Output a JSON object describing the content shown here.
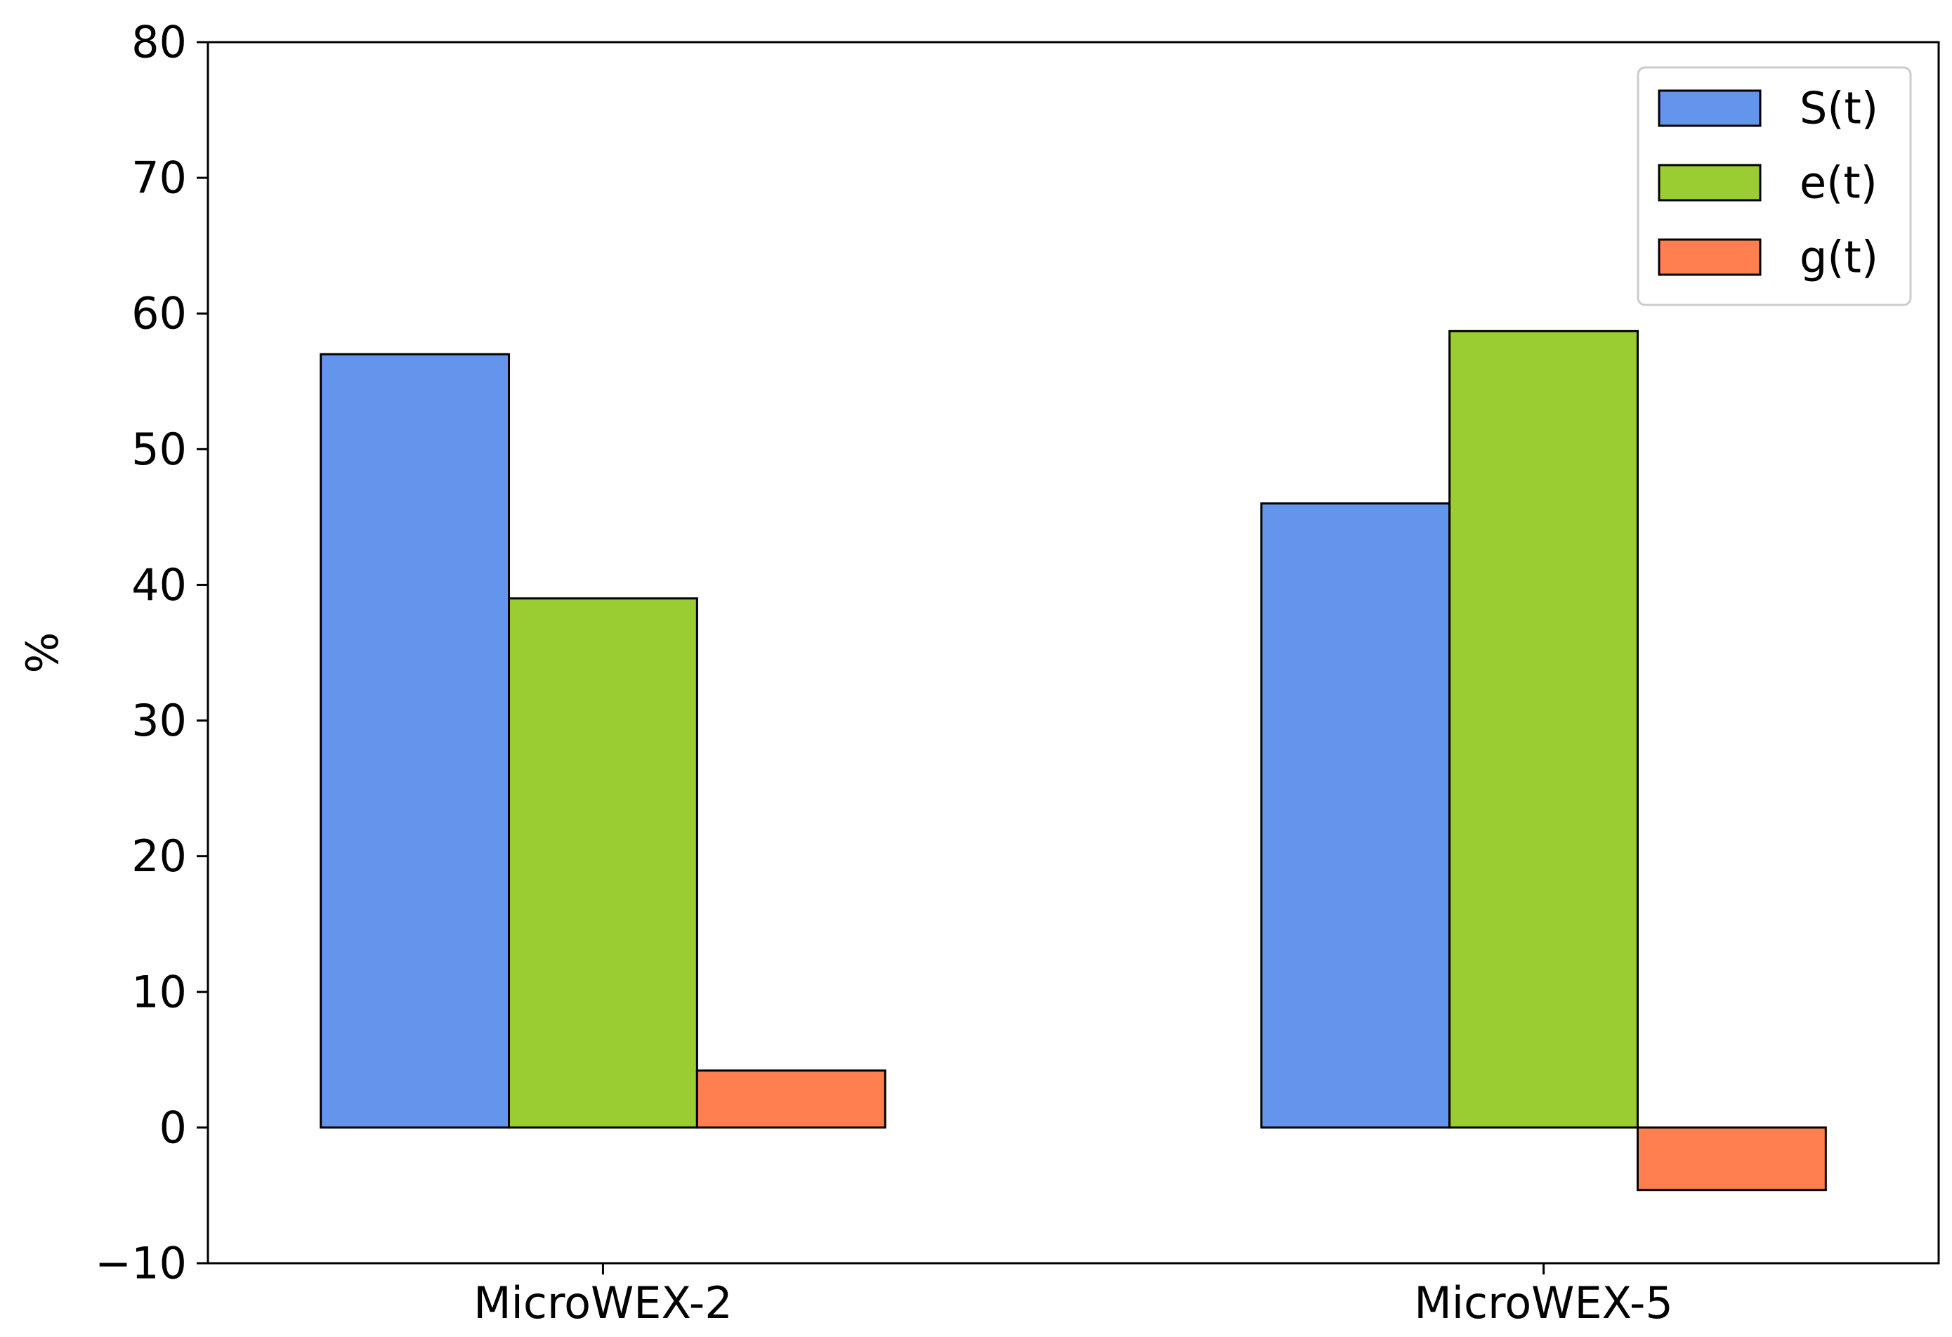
{
  "chart_data": {
    "type": "bar",
    "title": "",
    "xlabel": "",
    "ylabel": "%",
    "ylim": [
      -10,
      80
    ],
    "yticks": [
      -10,
      0,
      10,
      20,
      30,
      40,
      50,
      60,
      70,
      80
    ],
    "categories": [
      "MicroWEX-2",
      "MicroWEX-5"
    ],
    "series": [
      {
        "name": "S(t)",
        "color": "#6495ED",
        "values": [
          57.0,
          46.0
        ]
      },
      {
        "name": "e(t)",
        "color": "#9ACD32",
        "values": [
          39.0,
          58.7
        ]
      },
      {
        "name": "g(t)",
        "color": "#FF7F50",
        "values": [
          4.2,
          -4.6
        ]
      }
    ],
    "grid": false,
    "legend": "top-right"
  }
}
